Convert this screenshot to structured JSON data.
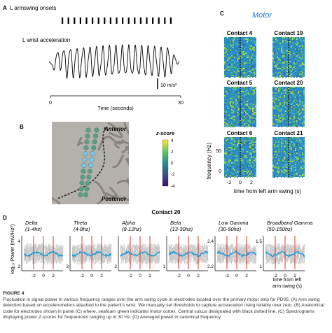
{
  "panel_a": {
    "label": "A",
    "onsets_label": "L armswing onsets",
    "accel_label": "L wrist acceleration",
    "scale_label": "10 m/s²",
    "x_ticks": [
      "0",
      "30"
    ],
    "x_label": "Time (seconds)"
  },
  "panel_b": {
    "label": "B",
    "anterior": "Anterior",
    "posterior": "Posterior",
    "colorbar_title": "z-score",
    "colorbar_ticks": [
      "4",
      "2",
      "0",
      "-2",
      "-4"
    ]
  },
  "panel_c": {
    "label": "C",
    "title": "Motor",
    "contacts": [
      "Contact 4",
      "Contact 19",
      "Contact 5",
      "Contact 20",
      "Contact 6",
      "Contact 21"
    ],
    "y_label": "frequency (Hz)",
    "y_ticks": [
      "50",
      "0"
    ],
    "x_ticks": [
      "-2",
      "0",
      "2"
    ],
    "x_label": "time from left arm swing (s)"
  },
  "panel_d": {
    "label": "D",
    "title": "Contact 20",
    "y_label": "log₁₀ Power (mV/Hz²)",
    "x_label_line1": "time from left",
    "x_label_line2": "arm swing (s)",
    "x_ticks": [
      "-2",
      "0",
      "2"
    ],
    "bands": [
      {
        "name": "Delta",
        "range": "(1-4hz)",
        "y_ticks": [
          "4",
          "3"
        ]
      },
      {
        "name": "Theta",
        "range": "(4-8hz)",
        "y_ticks": [
          "3"
        ]
      },
      {
        "name": "Alpha",
        "range": "(8-12hz)",
        "y_ticks": [
          "2"
        ]
      },
      {
        "name": "Beta",
        "range": "(13-30hz)",
        "y_ticks": [
          "1"
        ]
      },
      {
        "name": "Low Gamma",
        "range": "(30-50hz)",
        "y_ticks": [
          "2.4",
          "2.2"
        ]
      },
      {
        "name": "Broadband Gamma",
        "range": "(50-150hz)",
        "y_ticks": [
          "1.5",
          "1"
        ]
      }
    ]
  },
  "caption": {
    "figure": "FIGURE 4",
    "text": "Fluctuation in signal power in various frequency ranges over the arm swing cycle in electrodes located over the primary motor strip for PD05. (A) Arm swing detection based on accelerometers attached to the patient's wrist. We manually set thresholds to capture acceleration rising reliably over zero. (B) Anatomical code for electrodes shown in panel (C) where, seafoam green indicates motor cortex. Central sulcus designated with black dotted line. (C) Spectrograms displaying power Z-scores for frequencies ranging up to 30 Hz. (D) Averaged power in canonical frequency"
  },
  "colors": {
    "trace": "#000000",
    "seafoam": "#5a9e85",
    "highlight": "#7cc7e8",
    "spec_base": "#2c8fc4",
    "spec_warm": "#a9d64a",
    "mean_line": "#1a9ad6",
    "event_line": "#e0342c"
  }
}
